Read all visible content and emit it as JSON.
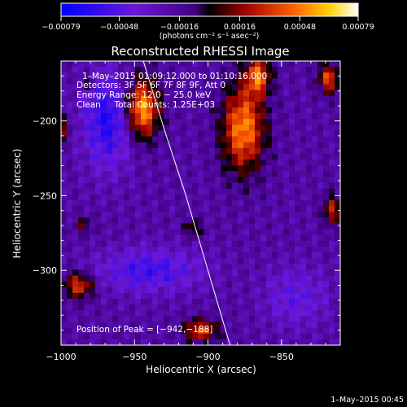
{
  "chart_data": {
    "type": "heatmap",
    "title": "Reconstructed RHESSI Image",
    "xlabel": "Heliocentric X (arcsec)",
    "ylabel": "Heliocentric Y (arcsec)",
    "xlim": [
      -1000,
      -810
    ],
    "ylim": [
      -350,
      -160
    ],
    "xticks": [
      -1000,
      -950,
      -900,
      -850
    ],
    "xtick_labels": [
      "−1000",
      "−950",
      "−900",
      "−850"
    ],
    "yticks": [
      -200,
      -250,
      -300
    ],
    "ytick_labels": [
      "−200",
      "−250",
      "−300"
    ],
    "colorbar": {
      "min": -0.00079,
      "max": 0.00079,
      "ticks": [
        -0.00079,
        -0.00048,
        -0.00016,
        0.00016,
        0.00048,
        0.00079
      ],
      "tick_labels": [
        "−0.00079",
        "−0.00048",
        "−0.00016",
        "0.00016",
        "0.00048",
        "0.00079"
      ],
      "label": "(photons cm⁻² s⁻¹ asec⁻²)"
    },
    "annotations": {
      "time": "1–May–2015 01:09:12.000 to 01:10:16.000",
      "detectors": "Detectors: 3F 5F 6F 7F 8F 9F, Att 0",
      "energy": "Energy Range: 12.0 − 25.0 keV",
      "clean": "Clean     Total Counts: 1.25E+03",
      "peak": "Position of Peak = [−942,−188]"
    },
    "limb_curve": [
      [
        -944,
        -160
      ],
      [
        -930,
        -205
      ],
      [
        -915,
        -250
      ],
      [
        -900,
        -300
      ],
      [
        -885,
        -350
      ]
    ],
    "sources": [
      {
        "x": -945,
        "y": -192,
        "amplitude": 0.00079,
        "sx": 8,
        "sy": 14
      },
      {
        "x": -876,
        "y": -205,
        "amplitude": 0.0007,
        "sx": 10,
        "sy": 20
      },
      {
        "x": -866,
        "y": -170,
        "amplitude": 0.0006,
        "sx": 6,
        "sy": 9
      },
      {
        "x": -818,
        "y": -172,
        "amplitude": 0.00055,
        "sx": 5,
        "sy": 7
      },
      {
        "x": -988,
        "y": -310,
        "amplitude": 0.00055,
        "sx": 7,
        "sy": 6
      },
      {
        "x": -905,
        "y": -340,
        "amplitude": 0.00055,
        "sx": 8,
        "sy": 5
      },
      {
        "x": -816,
        "y": -260,
        "amplitude": 0.00045,
        "sx": 4,
        "sy": 7
      },
      {
        "x": -1000,
        "y": -205,
        "amplitude": 0.00035,
        "sx": 4,
        "sy": 6
      },
      {
        "x": -910,
        "y": -272,
        "amplitude": 0.0003,
        "sx": 4,
        "sy": 4
      },
      {
        "x": -982,
        "y": -175,
        "amplitude": 0.0003,
        "sx": 3,
        "sy": 3
      },
      {
        "x": -985,
        "y": -270,
        "amplitude": 0.00025,
        "sx": 4,
        "sy": 4
      },
      {
        "x": -968,
        "y": -200,
        "amplitude": -0.00045,
        "sx": 12,
        "sy": 22
      },
      {
        "x": -940,
        "y": -300,
        "amplitude": -0.00035,
        "sx": 25,
        "sy": 10
      },
      {
        "x": -840,
        "y": -318,
        "amplitude": -0.00025,
        "sx": 15,
        "sy": 14
      }
    ],
    "background": -0.0002
  },
  "footer": {
    "timestamp": "1–May–2015 00:45"
  },
  "colors": {
    "background": "#000000",
    "text": "#ffffff"
  }
}
